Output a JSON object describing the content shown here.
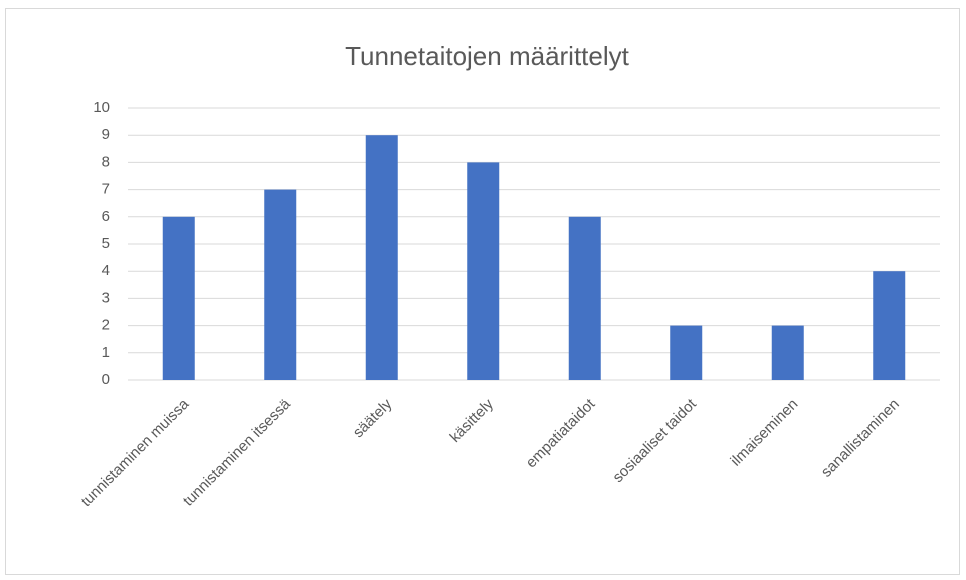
{
  "chart_data": {
    "type": "bar",
    "title": "Tunnetaitojen määrittelyt",
    "categories": [
      "tunnistaminen muissa",
      "tunnistaminen itsessä",
      "säätely",
      "käsittely",
      "empatiataidot",
      "sosiaaliset taidot",
      "ilmaiseminen",
      "sanallistaminen"
    ],
    "values": [
      6,
      7,
      9,
      8,
      6,
      2,
      2,
      4
    ],
    "color": "#4472c4",
    "ylim": [
      0,
      10
    ],
    "yticks": [
      0,
      1,
      2,
      3,
      4,
      5,
      6,
      7,
      8,
      9,
      10
    ],
    "grid": true
  }
}
